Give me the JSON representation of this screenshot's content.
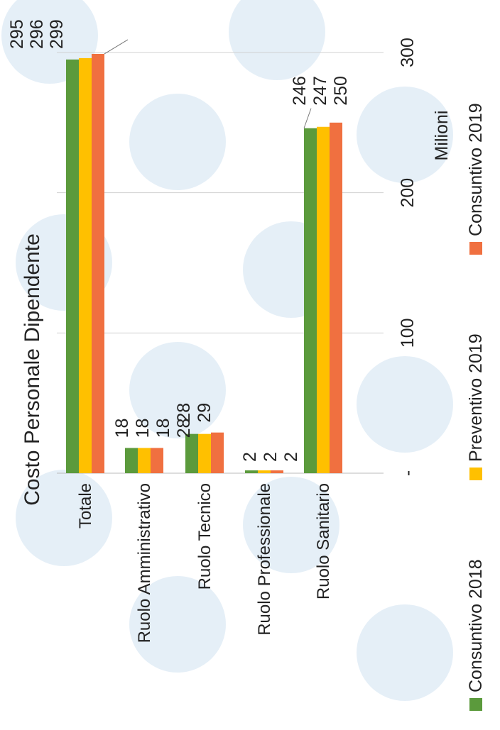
{
  "chart_data": {
    "type": "bar",
    "orientation": "horizontal",
    "title": "Costo Personale Dipendente",
    "categories": [
      "Totale",
      "Ruolo Amministrativo",
      "Ruolo Tecnico",
      "Ruolo Professionale",
      "Ruolo Sanitario"
    ],
    "series": [
      {
        "name": "Consuntivo 2018",
        "color": "#5b9a3c",
        "values": [
          295,
          18,
          28,
          2,
          246
        ]
      },
      {
        "name": "Preventivo 2019",
        "color": "#ffc000",
        "values": [
          296,
          18,
          28,
          2,
          247
        ]
      },
      {
        "name": "Consuntivo 2019",
        "color": "#f07040",
        "values": [
          299,
          18,
          29,
          2,
          250
        ]
      }
    ],
    "xlabel": "Milioni",
    "xlim": [
      0,
      300
    ],
    "xticks": [
      {
        "value": 0,
        "label": "-"
      },
      {
        "value": 100,
        "label": "100"
      },
      {
        "value": 200,
        "label": "200"
      },
      {
        "value": 300,
        "label": "300"
      }
    ],
    "grid": true,
    "legend": "bottom"
  }
}
